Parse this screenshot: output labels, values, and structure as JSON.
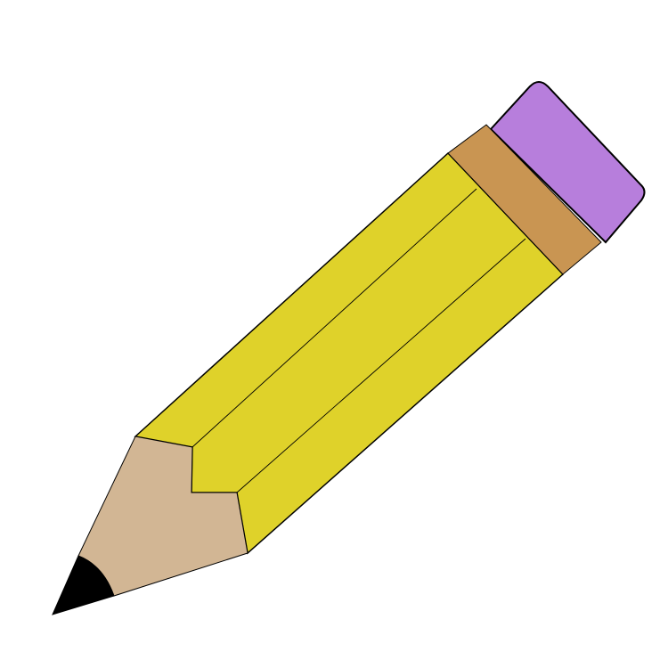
{
  "illustration": {
    "subject": "pencil",
    "colors": {
      "background": "#ffffff",
      "outline": "#000000",
      "body_yellow": "#dfd22a",
      "eraser_purple": "#b77edc",
      "ferrule_brown": "#c99552",
      "wood_tan": "#d2b694",
      "lead_black": "#000000"
    },
    "icons": {
      "pencil": "pencil-icon",
      "eraser": "eraser-icon",
      "ferrule": "ferrule-band",
      "tip": "pencil-tip",
      "lead": "lead-point"
    }
  }
}
